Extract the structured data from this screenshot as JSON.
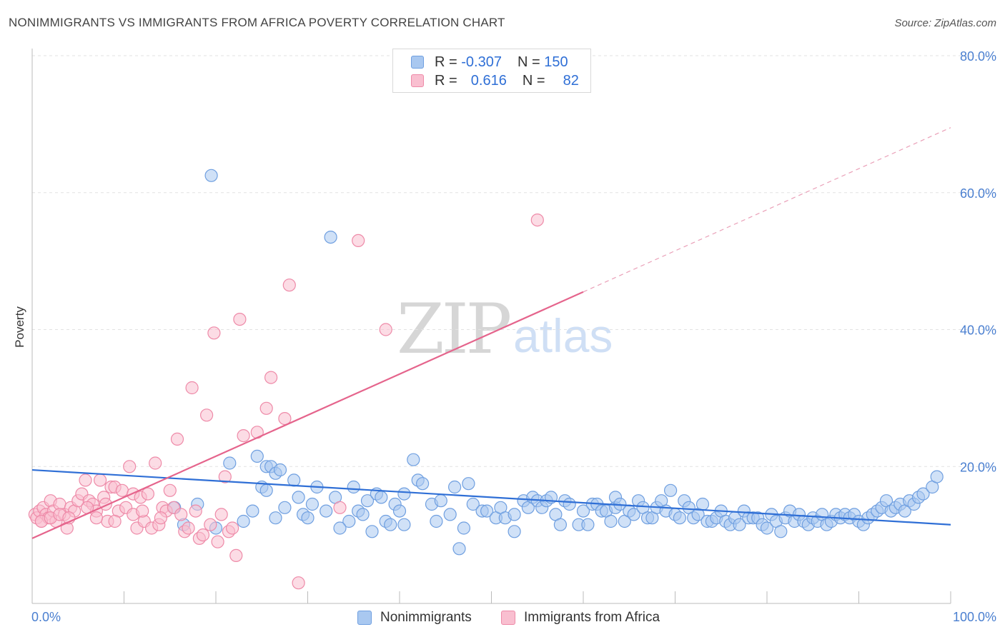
{
  "title": "NONIMMIGRANTS VS IMMIGRANTS FROM AFRICA POVERTY CORRELATION CHART",
  "source": "Source: ZipAtlas.com",
  "watermark": {
    "zip": "ZIP",
    "atlas": "atlas"
  },
  "legend_top": [
    {
      "r_label": "R = ",
      "r_value": "-0.307",
      "n_label": "N = ",
      "n_value": "150",
      "color": "#a9c8f0",
      "border": "#6f9fe0"
    },
    {
      "r_label": "R = ",
      "r_value": " 0.616",
      "n_label": "N = ",
      "n_value": " 82",
      "color": "#f9bfd0",
      "border": "#ee8aa8"
    }
  ],
  "legend_bottom": [
    {
      "label": "Nonimmigrants",
      "color": "#a9c8f0",
      "border": "#6f9fe0"
    },
    {
      "label": "Immigrants from Africa",
      "color": "#f9bfd0",
      "border": "#ee8aa8"
    }
  ],
  "chart_data": {
    "type": "scatter",
    "title": "NONIMMIGRANTS VS IMMIGRANTS FROM AFRICA POVERTY CORRELATION CHART",
    "xlabel": "",
    "ylabel": "Poverty",
    "xlim": [
      0,
      100
    ],
    "ylim": [
      0,
      80
    ],
    "x_tick_labels": [
      "0.0%",
      "100.0%"
    ],
    "y_ticks": [
      20,
      40,
      60,
      80
    ],
    "y_tick_labels": [
      "20.0%",
      "40.0%",
      "60.0%",
      "80.0%"
    ],
    "grid": "horizontal dashed",
    "series": [
      {
        "name": "Nonimmigrants",
        "color": "#6f9fe0",
        "fill": "#a9c8f0",
        "r": -0.307,
        "n": 150,
        "trend": {
          "x": [
            0,
            100
          ],
          "y": [
            19.5,
            11.5
          ]
        },
        "points": [
          [
            19.5,
            62.5
          ],
          [
            32.5,
            53.5
          ],
          [
            21.5,
            20.5
          ],
          [
            24.5,
            21.5
          ],
          [
            25.0,
            17.0
          ],
          [
            25.5,
            16.5
          ],
          [
            25.5,
            20.0
          ],
          [
            26.0,
            20.0
          ],
          [
            26.5,
            19.0
          ],
          [
            27.0,
            19.5
          ],
          [
            27.5,
            14.0
          ],
          [
            28.5,
            18.0
          ],
          [
            29.0,
            15.5
          ],
          [
            29.5,
            13.0
          ],
          [
            30.5,
            14.5
          ],
          [
            31.0,
            17.0
          ],
          [
            32.0,
            13.5
          ],
          [
            33.0,
            15.5
          ],
          [
            34.5,
            12.0
          ],
          [
            35.0,
            17.0
          ],
          [
            35.5,
            13.5
          ],
          [
            36.0,
            13.0
          ],
          [
            36.5,
            15.0
          ],
          [
            37.5,
            16.0
          ],
          [
            38.0,
            15.5
          ],
          [
            38.5,
            12.0
          ],
          [
            39.0,
            11.5
          ],
          [
            39.5,
            14.5
          ],
          [
            40.0,
            13.5
          ],
          [
            40.5,
            16.0
          ],
          [
            40.5,
            11.5
          ],
          [
            41.5,
            21.0
          ],
          [
            42.0,
            18.0
          ],
          [
            42.5,
            17.5
          ],
          [
            43.5,
            14.5
          ],
          [
            44.0,
            12.0
          ],
          [
            44.5,
            15.0
          ],
          [
            45.5,
            13.0
          ],
          [
            46.0,
            17.0
          ],
          [
            46.5,
            8.0
          ],
          [
            47.0,
            11.0
          ],
          [
            47.5,
            17.5
          ],
          [
            48.0,
            14.5
          ],
          [
            49.0,
            13.5
          ],
          [
            49.5,
            13.5
          ],
          [
            50.5,
            12.5
          ],
          [
            51.0,
            14.0
          ],
          [
            51.5,
            12.5
          ],
          [
            52.5,
            10.5
          ],
          [
            52.5,
            13.0
          ],
          [
            53.5,
            15.0
          ],
          [
            54.0,
            14.0
          ],
          [
            54.5,
            15.5
          ],
          [
            55.0,
            15.0
          ],
          [
            55.5,
            14.0
          ],
          [
            56.0,
            15.0
          ],
          [
            56.5,
            15.5
          ],
          [
            57.0,
            13.0
          ],
          [
            57.5,
            11.5
          ],
          [
            58.0,
            15.0
          ],
          [
            58.5,
            14.5
          ],
          [
            59.5,
            11.5
          ],
          [
            60.0,
            13.5
          ],
          [
            60.5,
            11.5
          ],
          [
            61.0,
            14.5
          ],
          [
            61.5,
            14.5
          ],
          [
            62.0,
            13.5
          ],
          [
            62.5,
            13.5
          ],
          [
            63.0,
            12.0
          ],
          [
            63.5,
            14.0
          ],
          [
            63.5,
            15.5
          ],
          [
            64.0,
            14.5
          ],
          [
            64.5,
            12.0
          ],
          [
            65.0,
            13.5
          ],
          [
            65.5,
            13.0
          ],
          [
            66.0,
            15.0
          ],
          [
            66.5,
            14.0
          ],
          [
            67.0,
            12.5
          ],
          [
            67.5,
            12.5
          ],
          [
            68.0,
            14.0
          ],
          [
            68.5,
            15.0
          ],
          [
            69.0,
            13.5
          ],
          [
            69.5,
            16.5
          ],
          [
            70.0,
            13.0
          ],
          [
            70.5,
            12.5
          ],
          [
            71.0,
            15.0
          ],
          [
            71.5,
            14.0
          ],
          [
            72.0,
            12.5
          ],
          [
            72.5,
            13.0
          ],
          [
            73.0,
            14.5
          ],
          [
            73.5,
            12.0
          ],
          [
            74.0,
            12.0
          ],
          [
            74.5,
            12.5
          ],
          [
            75.0,
            13.5
          ],
          [
            75.5,
            12.0
          ],
          [
            76.0,
            11.5
          ],
          [
            76.5,
            12.5
          ],
          [
            77.0,
            11.5
          ],
          [
            77.5,
            13.5
          ],
          [
            78.0,
            12.5
          ],
          [
            78.5,
            12.5
          ],
          [
            79.0,
            12.5
          ],
          [
            79.5,
            11.5
          ],
          [
            80.0,
            11.0
          ],
          [
            80.5,
            13.0
          ],
          [
            81.0,
            12.0
          ],
          [
            81.5,
            10.5
          ],
          [
            82.0,
            12.5
          ],
          [
            82.5,
            13.5
          ],
          [
            83.0,
            12.0
          ],
          [
            83.5,
            13.0
          ],
          [
            84.0,
            12.0
          ],
          [
            84.5,
            11.5
          ],
          [
            85.0,
            12.5
          ],
          [
            85.5,
            12.0
          ],
          [
            86.0,
            13.0
          ],
          [
            86.5,
            11.5
          ],
          [
            87.0,
            12.0
          ],
          [
            87.5,
            13.0
          ],
          [
            88.0,
            12.5
          ],
          [
            88.5,
            13.0
          ],
          [
            89.0,
            12.5
          ],
          [
            89.5,
            13.0
          ],
          [
            90.0,
            12.0
          ],
          [
            90.5,
            11.5
          ],
          [
            91.0,
            12.5
          ],
          [
            91.5,
            13.0
          ],
          [
            92.0,
            13.5
          ],
          [
            92.5,
            14.0
          ],
          [
            93.0,
            15.0
          ],
          [
            93.5,
            13.5
          ],
          [
            94.0,
            14.0
          ],
          [
            94.5,
            14.5
          ],
          [
            95.0,
            13.5
          ],
          [
            95.5,
            15.0
          ],
          [
            96.0,
            14.5
          ],
          [
            96.5,
            15.5
          ],
          [
            97.0,
            16.0
          ],
          [
            98.0,
            17.0
          ],
          [
            98.5,
            18.5
          ],
          [
            15.5,
            14.0
          ],
          [
            16.5,
            11.5
          ],
          [
            18.0,
            14.5
          ],
          [
            20.0,
            11.0
          ],
          [
            23.0,
            12.0
          ],
          [
            24.0,
            13.5
          ],
          [
            26.5,
            12.5
          ],
          [
            30.0,
            12.5
          ],
          [
            33.5,
            11.0
          ],
          [
            37.0,
            10.5
          ]
        ]
      },
      {
        "name": "Immigrants from Africa",
        "color": "#ee8aa8",
        "fill": "#f9bfd0",
        "r": 0.616,
        "n": 82,
        "trend": {
          "x": [
            0,
            60
          ],
          "y": [
            9.5,
            45.5
          ]
        },
        "trend_dashed": {
          "x": [
            60,
            100
          ],
          "y": [
            45.5,
            69.5
          ]
        },
        "points": [
          [
            0.3,
            13.0
          ],
          [
            0.5,
            12.5
          ],
          [
            0.8,
            13.5
          ],
          [
            1.0,
            12.0
          ],
          [
            1.2,
            14.0
          ],
          [
            1.5,
            13.0
          ],
          [
            1.8,
            12.5
          ],
          [
            2.0,
            15.0
          ],
          [
            2.3,
            13.5
          ],
          [
            2.6,
            12.0
          ],
          [
            3.0,
            14.5
          ],
          [
            3.5,
            13.0
          ],
          [
            3.8,
            11.0
          ],
          [
            4.2,
            14.0
          ],
          [
            4.6,
            13.5
          ],
          [
            5.0,
            15.0
          ],
          [
            5.4,
            16.0
          ],
          [
            5.8,
            18.0
          ],
          [
            6.2,
            15.0
          ],
          [
            6.6,
            14.5
          ],
          [
            7.0,
            13.5
          ],
          [
            7.4,
            18.0
          ],
          [
            7.8,
            15.5
          ],
          [
            8.2,
            12.0
          ],
          [
            8.6,
            17.0
          ],
          [
            9.0,
            17.0
          ],
          [
            9.4,
            13.5
          ],
          [
            9.8,
            16.5
          ],
          [
            10.2,
            14.0
          ],
          [
            10.6,
            20.0
          ],
          [
            11.0,
            16.0
          ],
          [
            11.4,
            11.0
          ],
          [
            11.8,
            15.5
          ],
          [
            12.2,
            12.0
          ],
          [
            12.6,
            16.0
          ],
          [
            13.0,
            11.0
          ],
          [
            13.4,
            20.5
          ],
          [
            13.8,
            11.5
          ],
          [
            14.2,
            14.0
          ],
          [
            14.6,
            13.5
          ],
          [
            15.0,
            16.5
          ],
          [
            15.4,
            14.0
          ],
          [
            15.8,
            24.0
          ],
          [
            16.2,
            13.0
          ],
          [
            16.6,
            10.5
          ],
          [
            17.0,
            11.0
          ],
          [
            17.4,
            31.5
          ],
          [
            17.8,
            13.5
          ],
          [
            18.2,
            9.5
          ],
          [
            18.6,
            10.0
          ],
          [
            19.0,
            27.5
          ],
          [
            19.4,
            11.5
          ],
          [
            19.8,
            39.5
          ],
          [
            20.2,
            9.0
          ],
          [
            20.6,
            13.0
          ],
          [
            21.0,
            18.5
          ],
          [
            21.4,
            10.5
          ],
          [
            21.8,
            11.0
          ],
          [
            22.2,
            7.0
          ],
          [
            22.6,
            41.5
          ],
          [
            23.0,
            24.5
          ],
          [
            24.5,
            25.0
          ],
          [
            25.5,
            28.5
          ],
          [
            26.0,
            33.0
          ],
          [
            27.5,
            27.0
          ],
          [
            28.0,
            46.5
          ],
          [
            29.0,
            3.0
          ],
          [
            33.5,
            14.0
          ],
          [
            35.5,
            53.0
          ],
          [
            38.5,
            40.0
          ],
          [
            55.0,
            56.0
          ],
          [
            1.0,
            12.0
          ],
          [
            2.0,
            12.5
          ],
          [
            3.0,
            13.0
          ],
          [
            4.0,
            12.5
          ],
          [
            6.0,
            14.0
          ],
          [
            7.0,
            12.5
          ],
          [
            8.0,
            14.5
          ],
          [
            9.0,
            12.0
          ],
          [
            11.0,
            13.0
          ],
          [
            12.0,
            13.5
          ],
          [
            14.0,
            12.5
          ]
        ]
      }
    ]
  }
}
